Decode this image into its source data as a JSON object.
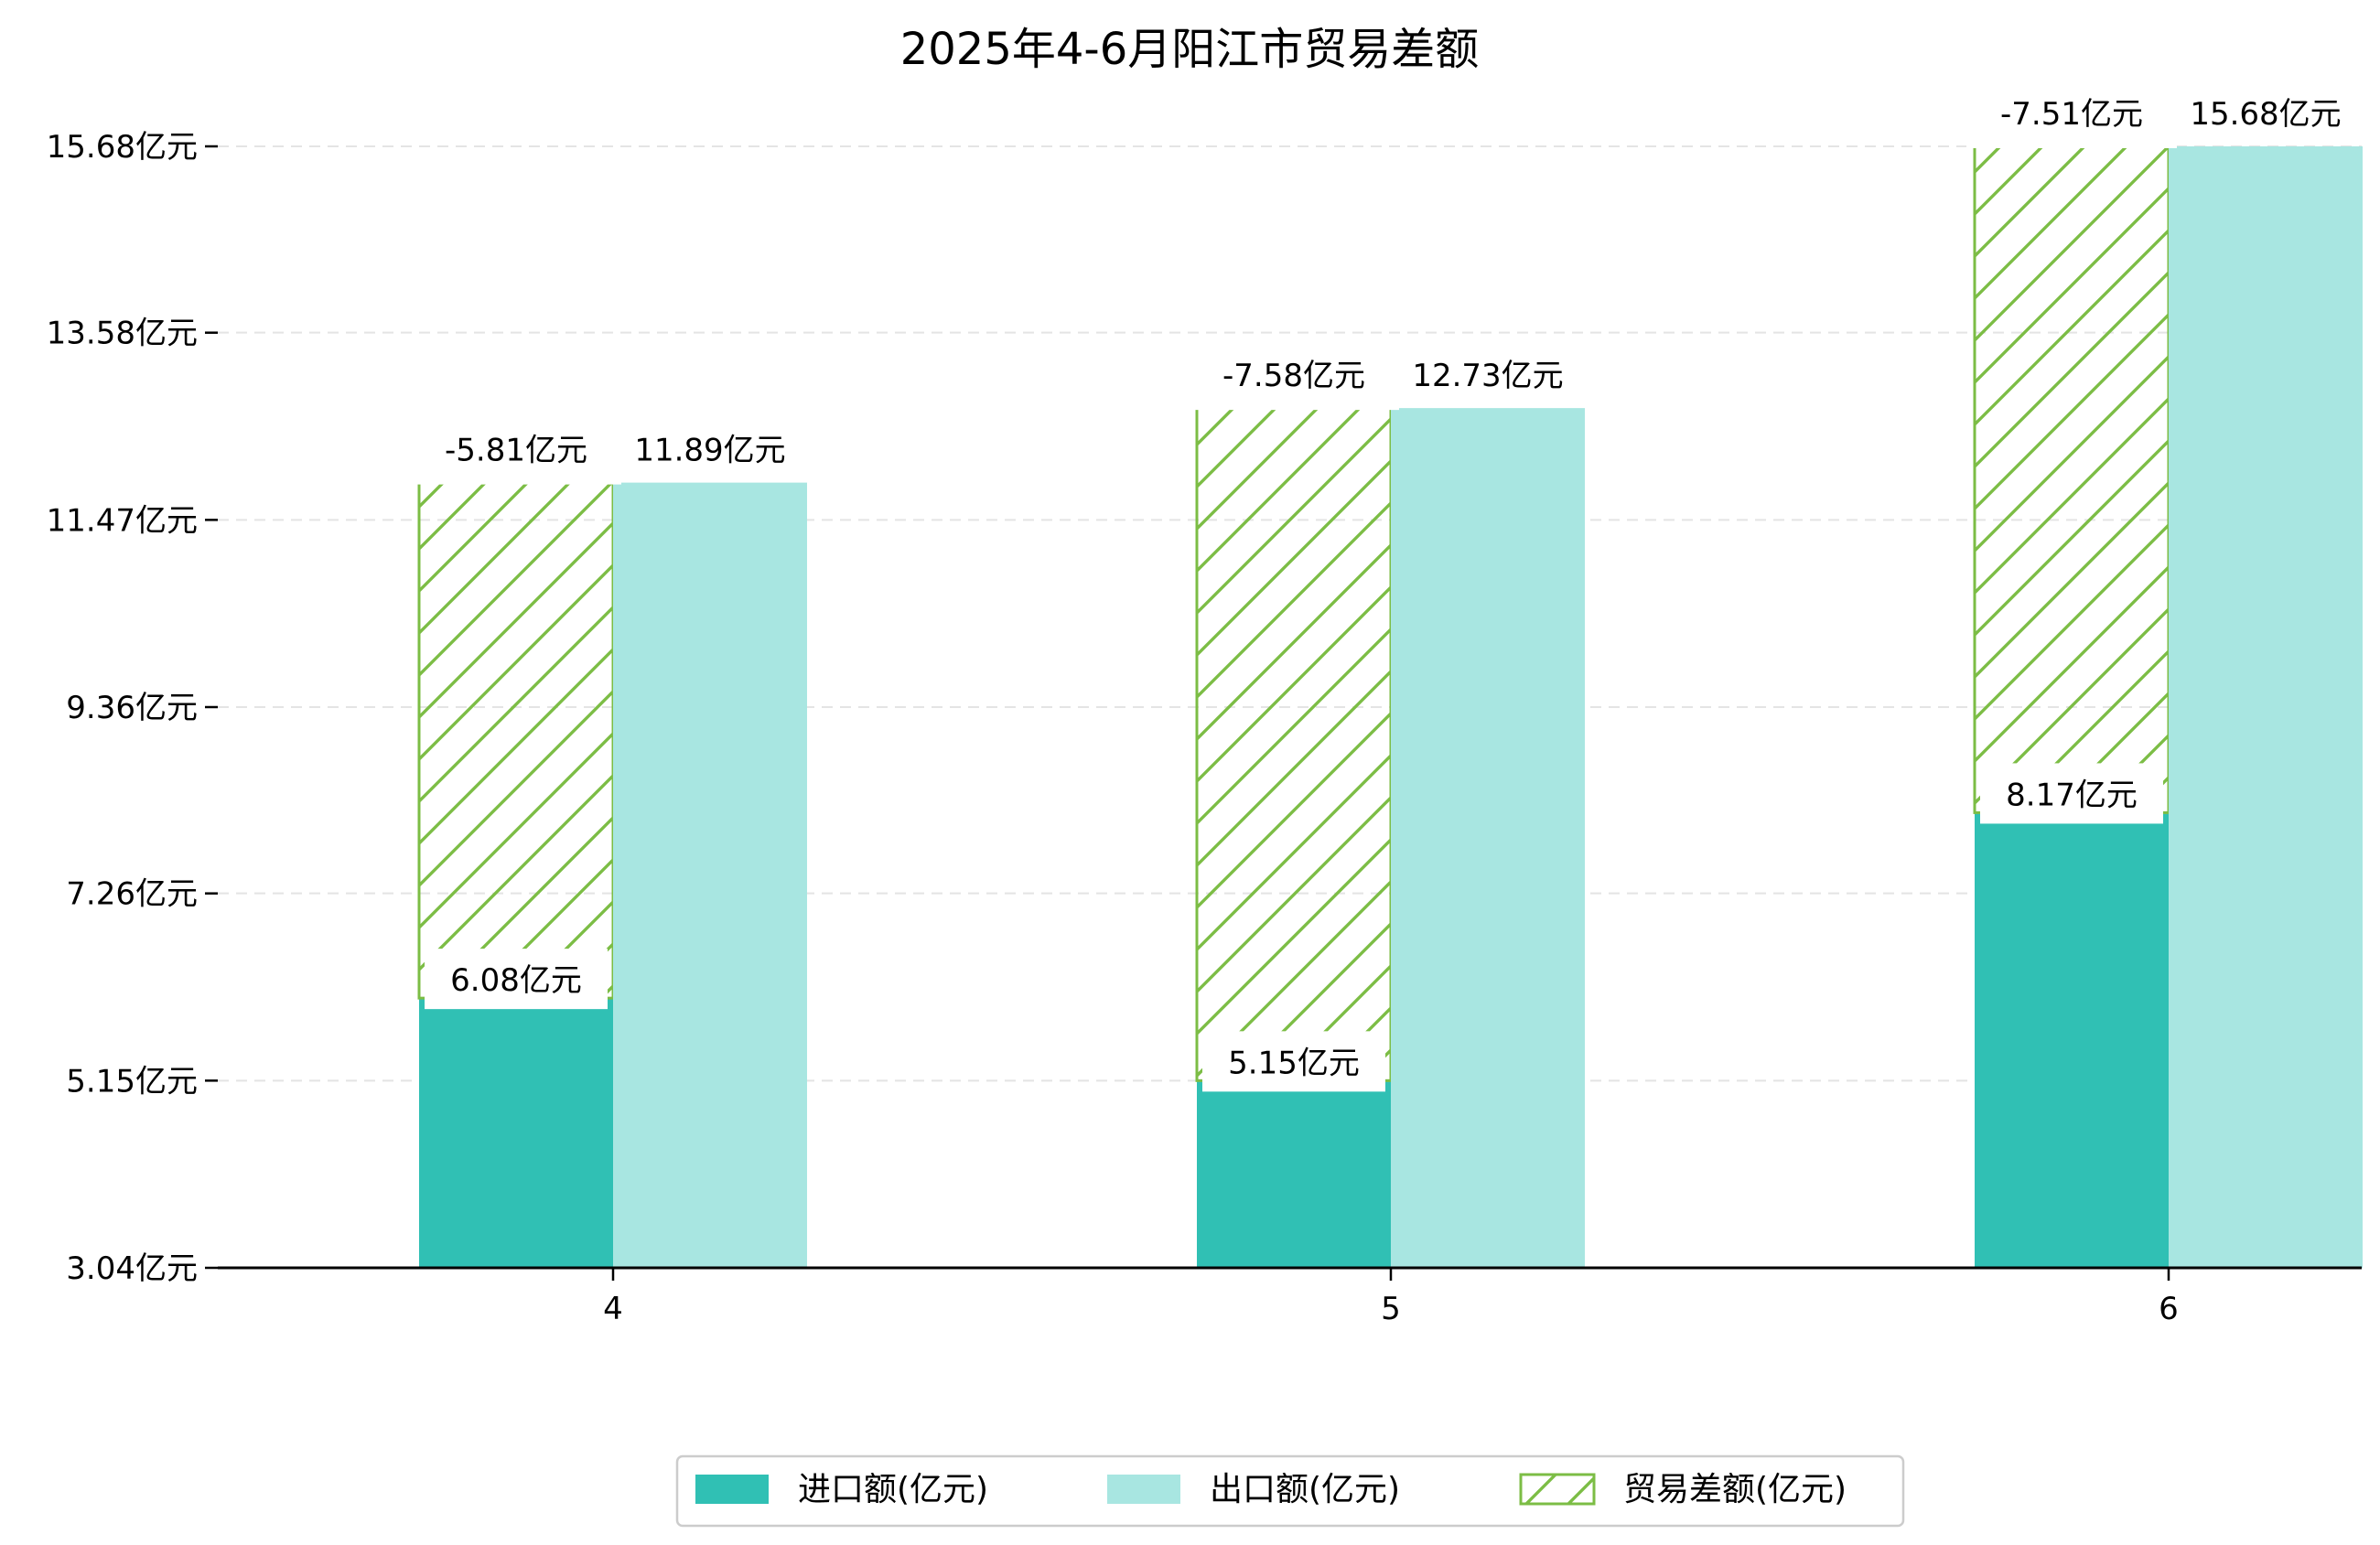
{
  "chart_data": {
    "type": "bar",
    "title": "2025年4-6月阳江市贸易差额",
    "xlabel": "",
    "ylabel": "",
    "categories": [
      "4",
      "5",
      "6"
    ],
    "series": [
      {
        "name": "进口额(亿元)",
        "values": [
          6.08,
          5.15,
          8.17
        ],
        "labels": [
          "6.08亿元",
          "5.15亿元",
          "8.17亿元"
        ]
      },
      {
        "name": "出口额(亿元)",
        "values": [
          11.89,
          12.73,
          15.68
        ],
        "labels": [
          "11.89亿元",
          "12.73亿元",
          "15.68亿元"
        ]
      },
      {
        "name": "贸易差额(亿元)",
        "values": [
          -5.81,
          -7.58,
          -7.51
        ],
        "labels": [
          "-5.81亿元",
          "-7.58亿元",
          "-7.51亿元"
        ]
      }
    ],
    "ylim": [
      3.04,
      15.68
    ],
    "yticks": [
      3.04,
      5.15,
      7.26,
      9.36,
      11.47,
      13.58,
      15.68
    ],
    "ytick_labels": [
      "3.04亿元",
      "5.15亿元",
      "7.26亿元",
      "9.36亿元",
      "11.47亿元",
      "13.58亿元",
      "15.68亿元"
    ],
    "grid": true,
    "legend_position": "bottom-center"
  },
  "colors": {
    "import": "#30c0b4",
    "export": "#a8e6e1",
    "balance": "#7cbd45",
    "grid": "#e4e4e4",
    "axis": "#000000"
  }
}
